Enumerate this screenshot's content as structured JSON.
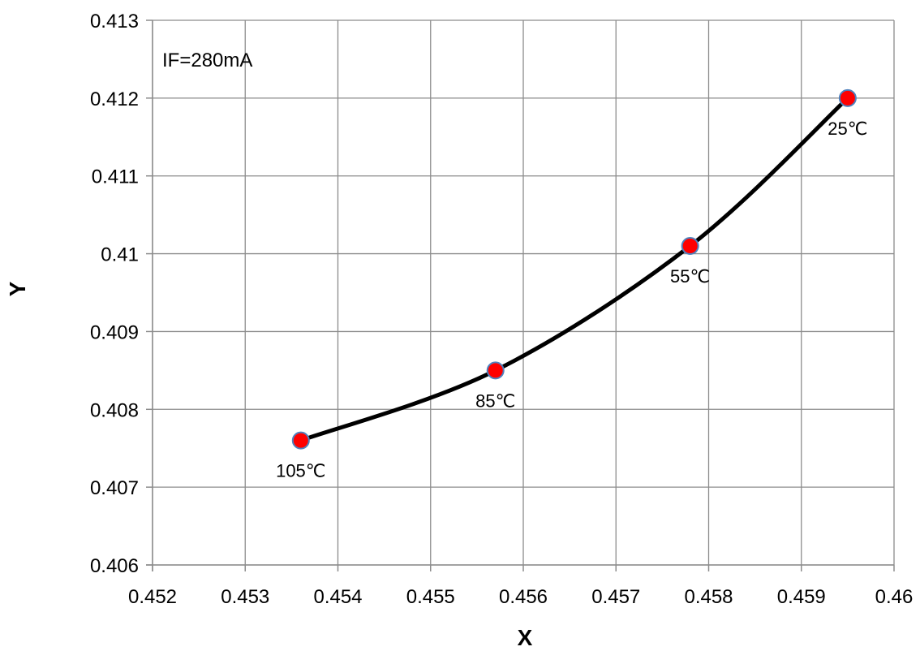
{
  "chart_data": {
    "type": "scatter",
    "title": "",
    "xlabel": "X",
    "ylabel": "Y",
    "xlim": [
      0.452,
      0.46
    ],
    "ylim": [
      0.406,
      0.413
    ],
    "xticks": [
      "0.452",
      "0.453",
      "0.454",
      "0.455",
      "0.456",
      "0.457",
      "0.458",
      "0.459",
      "0.46"
    ],
    "yticks": [
      "0.406",
      "0.407",
      "0.408",
      "0.409",
      "0.41",
      "0.411",
      "0.412",
      "0.413"
    ],
    "grid": true,
    "legend": "none",
    "annotation": "IF=280mA",
    "series": [
      {
        "points": [
          {
            "x": 0.4536,
            "y": 0.4076,
            "label": "105℃"
          },
          {
            "x": 0.4557,
            "y": 0.4085,
            "label": "85℃"
          },
          {
            "x": 0.4578,
            "y": 0.4101,
            "label": "55℃"
          },
          {
            "x": 0.4595,
            "y": 0.412,
            "label": "25℃"
          }
        ],
        "line_color": "#000000",
        "marker_fill": "#ff0000",
        "marker_stroke": "#4f81bd",
        "smooth": true
      }
    ]
  }
}
